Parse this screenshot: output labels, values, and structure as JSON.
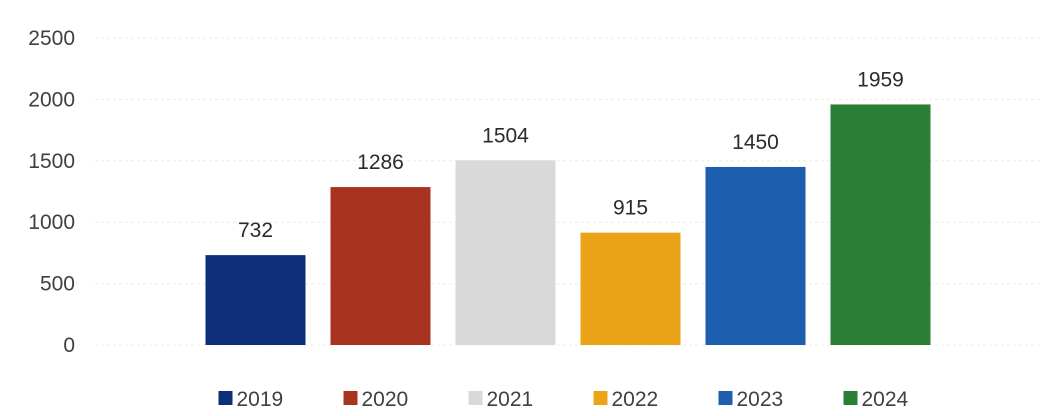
{
  "chart_data": {
    "type": "bar",
    "title": "",
    "xlabel": "",
    "ylabel": "",
    "categories": [
      "2019",
      "2020",
      "2021",
      "2022",
      "2023",
      "2024"
    ],
    "values": [
      732,
      1286,
      1504,
      915,
      1450,
      1959
    ],
    "data_labels": [
      "732",
      "1286",
      "1504",
      "915",
      "1450",
      "1959"
    ],
    "colors": [
      "#0d2f7a",
      "#a8331f",
      "#d9d9d9",
      "#eba317",
      "#1b5fae",
      "#2b7e35"
    ],
    "yticks": [
      "0",
      "500",
      "1000",
      "1500",
      "2000",
      "2500"
    ],
    "ylim": [
      0,
      2500
    ],
    "grid": true,
    "legend_position": "bottom",
    "legend": [
      "2019",
      "2020",
      "2021",
      "2022",
      "2023",
      "2024"
    ]
  }
}
